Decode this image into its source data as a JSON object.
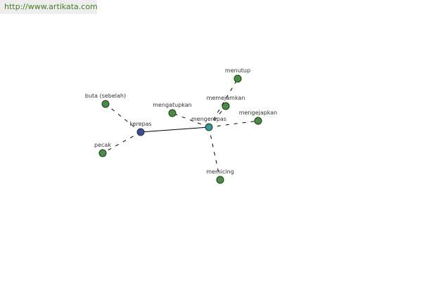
{
  "watermark": "http://www.artikata.com",
  "colors": {
    "root": "#3b4a9c",
    "hub": "#3a9497",
    "leaf": "#4a8c45",
    "edge": "#000000"
  },
  "nodes": [
    {
      "id": "kerepas",
      "label": "kerepas",
      "type": "root"
    },
    {
      "id": "mengerepas",
      "label": "mengerepas",
      "type": "hub"
    },
    {
      "id": "buta",
      "label": "buta (sebelah)",
      "type": "leaf"
    },
    {
      "id": "pecak",
      "label": "pecak",
      "type": "leaf"
    },
    {
      "id": "mengatupkan",
      "label": "mengatupkan",
      "type": "leaf"
    },
    {
      "id": "memejamkan",
      "label": "memejamkan",
      "type": "leaf"
    },
    {
      "id": "menutup",
      "label": "menutup",
      "type": "leaf"
    },
    {
      "id": "mengejapkan",
      "label": "mengejapkan",
      "type": "leaf"
    },
    {
      "id": "memicing",
      "label": "memicing",
      "type": "leaf"
    }
  ],
  "edges": [
    {
      "from": "kerepas",
      "to": "mengerepas",
      "style": "solid"
    },
    {
      "from": "kerepas",
      "to": "buta",
      "style": "dashed"
    },
    {
      "from": "kerepas",
      "to": "pecak",
      "style": "dashed"
    },
    {
      "from": "mengerepas",
      "to": "mengatupkan",
      "style": "dashed"
    },
    {
      "from": "mengerepas",
      "to": "memejamkan",
      "style": "dashed"
    },
    {
      "from": "mengerepas",
      "to": "menutup",
      "style": "dashed"
    },
    {
      "from": "mengerepas",
      "to": "mengejapkan",
      "style": "dashed"
    },
    {
      "from": "mengerepas",
      "to": "memicing",
      "style": "dashed"
    }
  ]
}
